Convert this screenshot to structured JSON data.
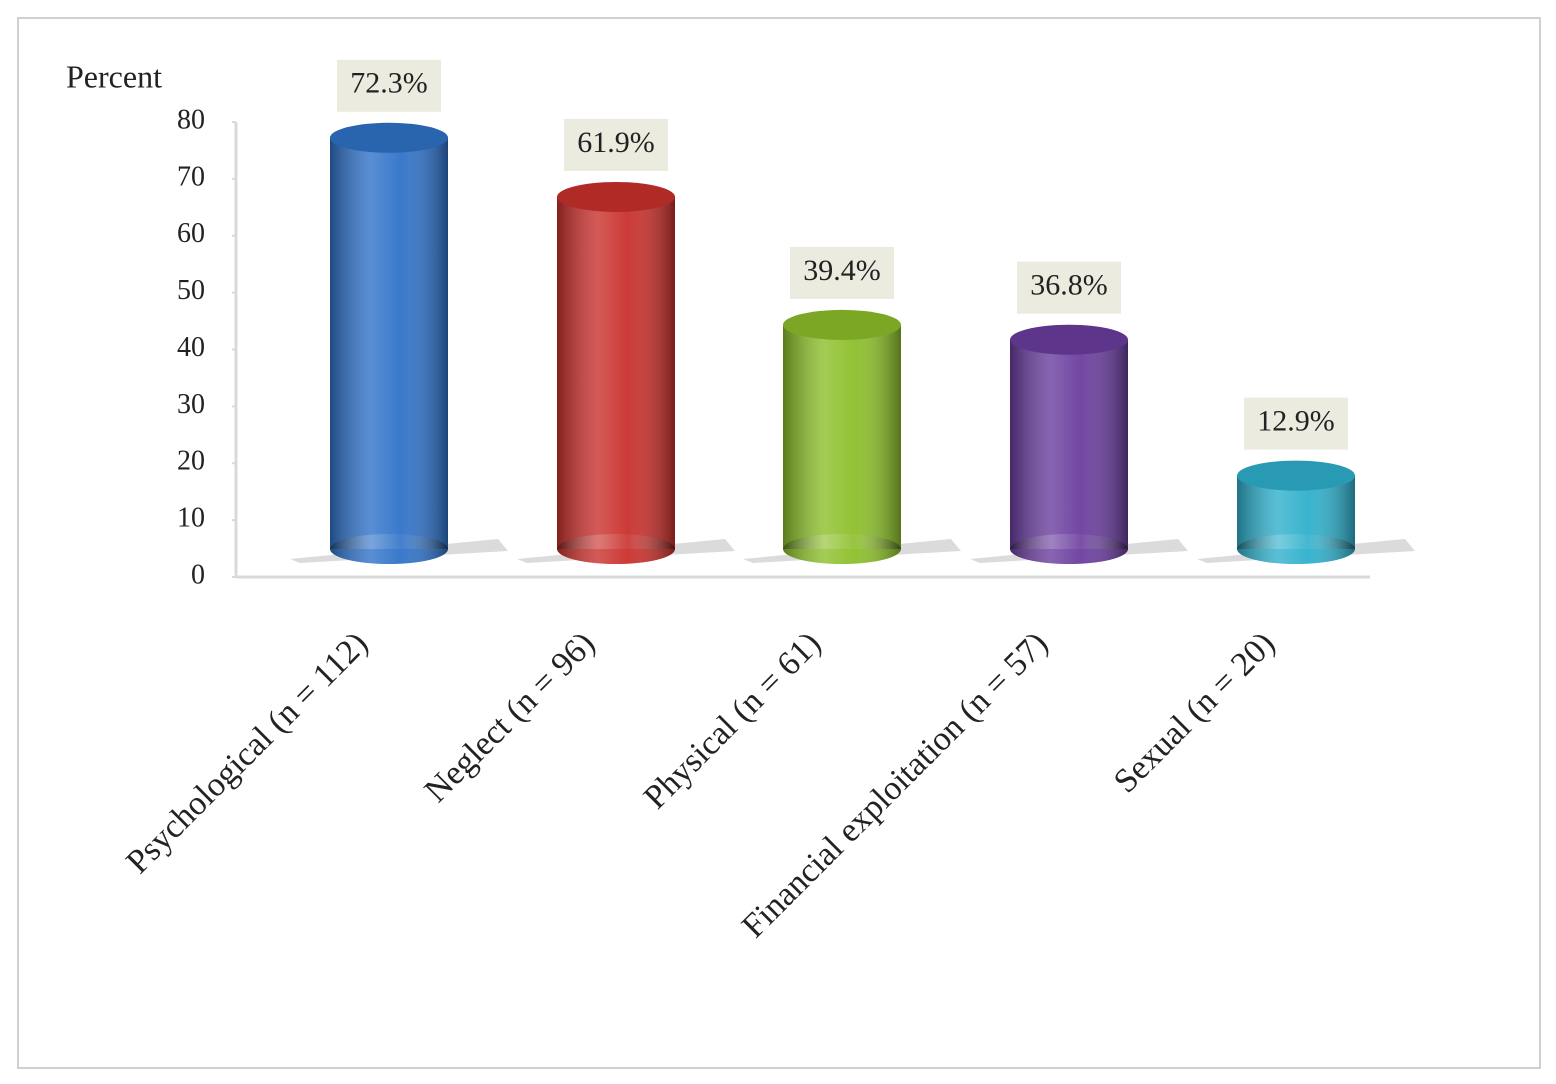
{
  "chart_data": {
    "type": "bar",
    "y_label": "Percent",
    "categories": [
      "Psychological (n = 112)",
      "Neglect (n = 96)",
      "Physical (n = 61)",
      "Financial exploitation (n = 57)",
      "Sexual (n = 20)"
    ],
    "values": [
      72.3,
      61.9,
      39.4,
      36.8,
      12.9
    ],
    "value_labels": [
      "72.3%",
      "61.9%",
      "39.4%",
      "36.8%",
      "12.9%"
    ],
    "colors": [
      "#2f72c8",
      "#c9302c",
      "#8cbf2a",
      "#6a3d9e",
      "#2fb0cc"
    ],
    "ylim": [
      0,
      80
    ],
    "yticks": [
      0,
      10,
      20,
      30,
      40,
      50,
      60,
      70,
      80
    ]
  }
}
